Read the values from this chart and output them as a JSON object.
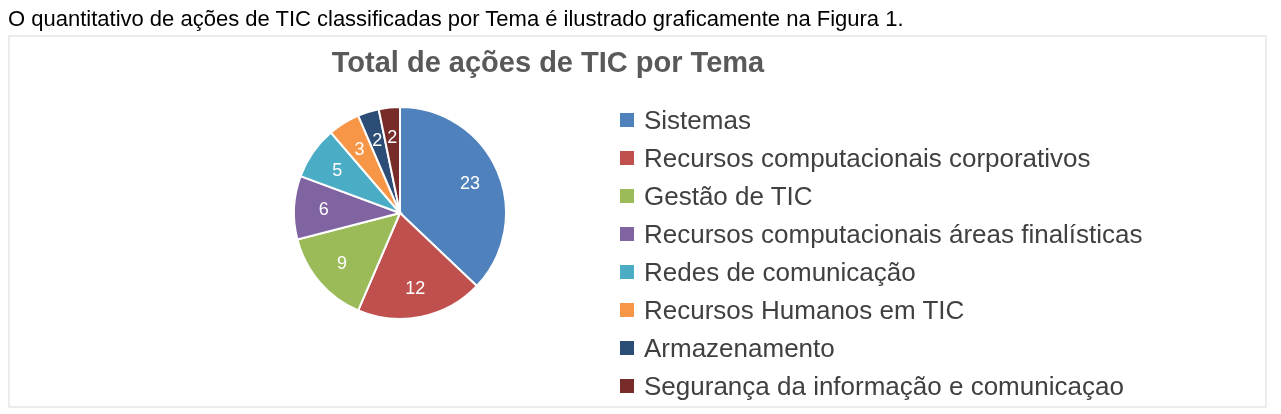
{
  "chart_data": {
    "type": "pie",
    "title": "Total de ações de TIC por Tema",
    "annotations": [
      "O quantitativo de ações de TIC classificadas por Tema é ilustrado graficamente na Figura 1."
    ],
    "categories": [
      "Sistemas",
      "Recursos computacionais corporativos",
      "Gestão de TIC",
      "Recursos computacionais áreas finalísticas",
      "Redes de comunicação",
      "Recursos Humanos em TIC",
      "Armazenamento",
      "Segurança da informação e comunicaçao"
    ],
    "values": [
      23,
      12,
      9,
      6,
      5,
      3,
      2,
      2
    ],
    "colors": [
      "#4f81bd",
      "#c0504d",
      "#9bbb59",
      "#8064a2",
      "#4bacc6",
      "#f79646",
      "#2c4d75",
      "#772c2a"
    ],
    "data_labels": true,
    "legend": "right"
  }
}
